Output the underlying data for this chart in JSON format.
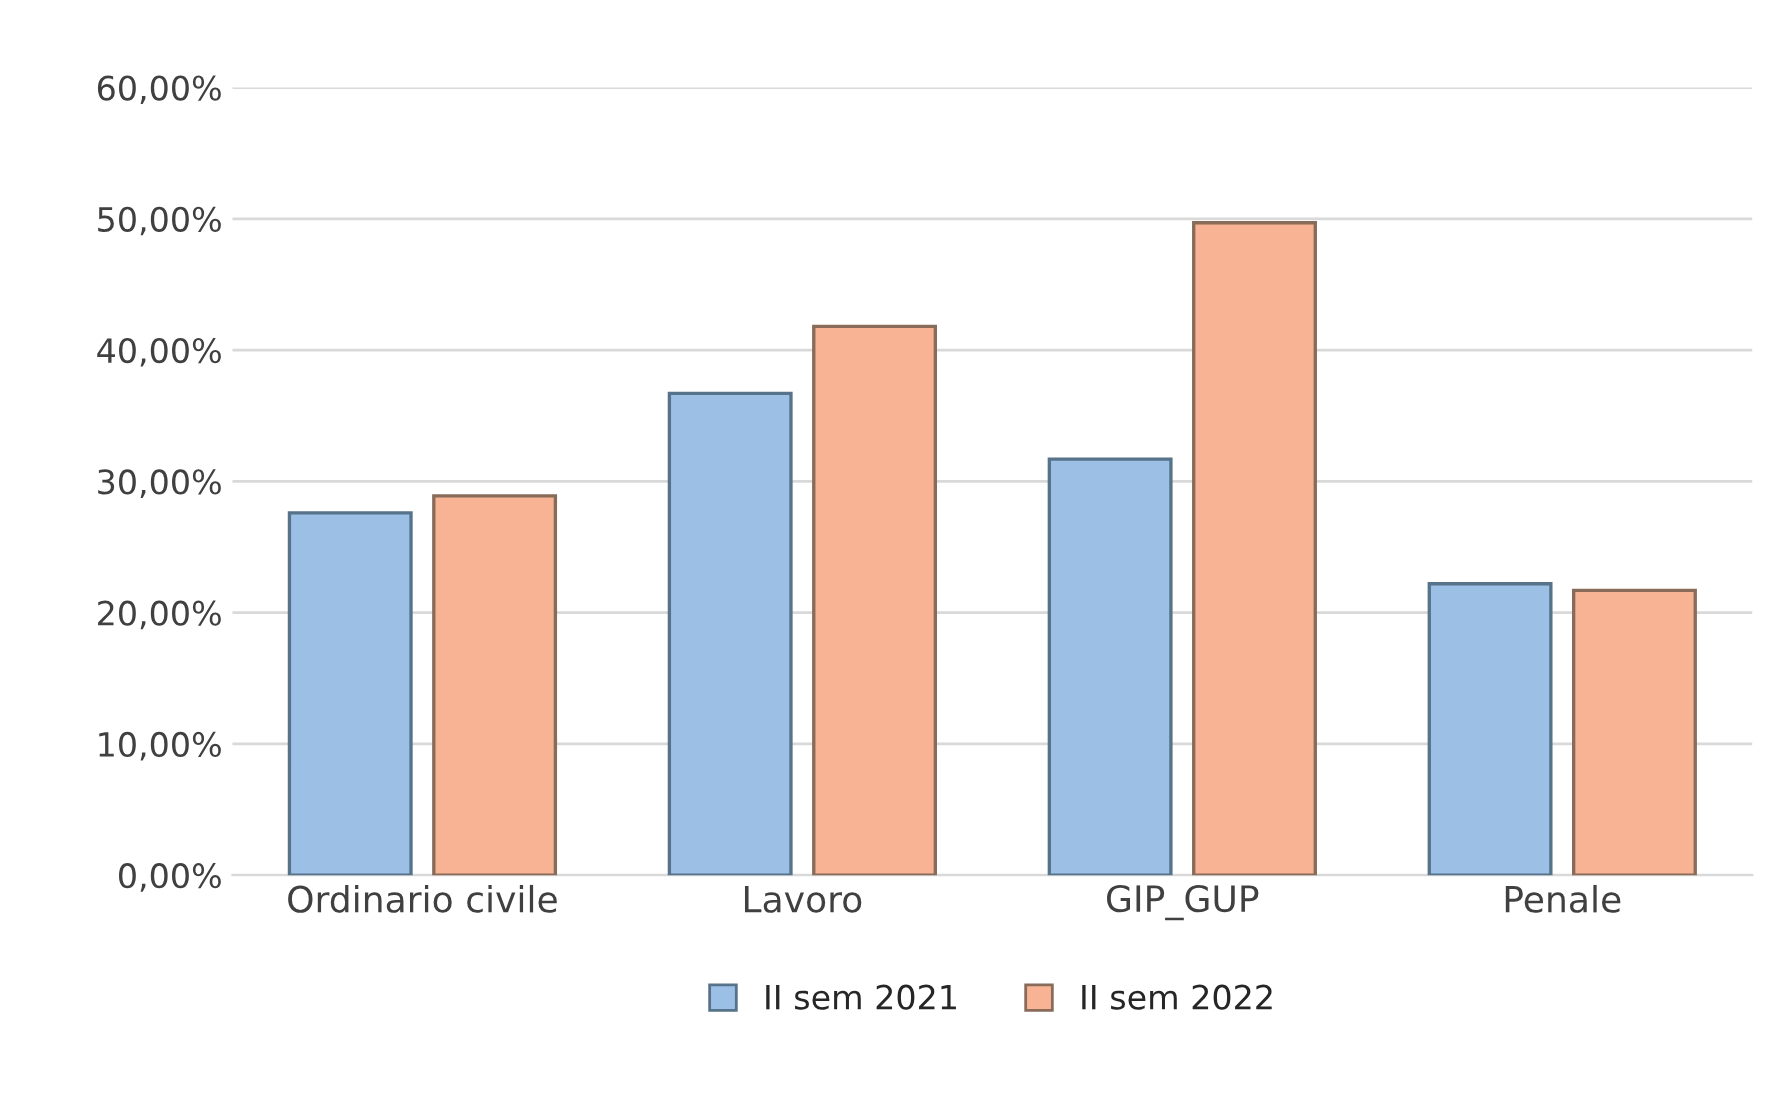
{
  "chart_data": {
    "type": "bar",
    "categories": [
      "Ordinario civile",
      "Lavoro",
      "GIP_GUP",
      "Penale"
    ],
    "series": [
      {
        "name": "II sem 2021",
        "color": "#9cbfe6",
        "values": [
          27.6,
          36.7,
          31.7,
          22.2
        ]
      },
      {
        "name": "II sem 2022",
        "color": "#f7b394",
        "values": [
          28.9,
          41.8,
          49.7,
          21.7
        ]
      }
    ],
    "ylim": [
      0,
      60
    ],
    "yticks": [
      {
        "value": 0,
        "label": "0,00%"
      },
      {
        "value": 10,
        "label": "10,00%"
      },
      {
        "value": 20,
        "label": "20,00%"
      },
      {
        "value": 30,
        "label": "30,00%"
      },
      {
        "value": 40,
        "label": "40,00%"
      },
      {
        "value": 50,
        "label": "50,00%"
      },
      {
        "value": 60,
        "label": "60,00%"
      }
    ],
    "grid": "y",
    "legend": "bottom"
  }
}
